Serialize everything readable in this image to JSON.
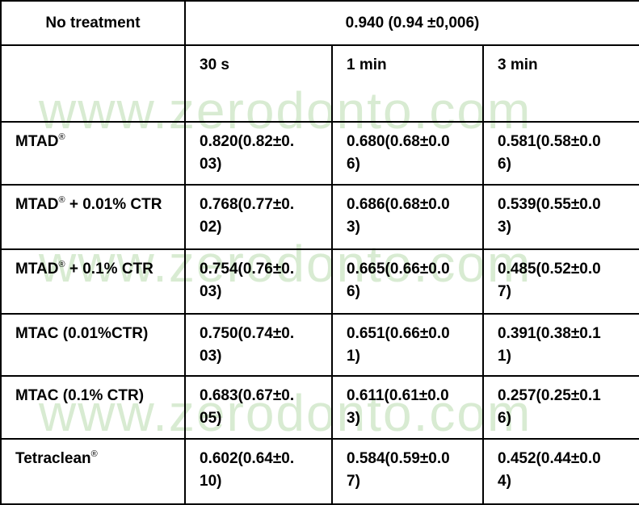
{
  "watermark": "www.zerodonto.com",
  "table": {
    "header": [
      "No treatment",
      "0.940 (0.94 ±0,006)"
    ],
    "columns": [
      "30 s",
      "1 min",
      "3 min"
    ],
    "rows": [
      {
        "label": {
          "text": "MTAD",
          "sup": "®"
        },
        "cells": [
          "0.820(0.82±0.03)",
          "0.680(0.68±0.06)",
          "0.581(0.58±0.06)"
        ]
      },
      {
        "label": {
          "text": "MTAD",
          "sup": "®",
          "after": " + 0.01% CTR"
        },
        "cells": [
          "0.768(0.77±0.02)",
          "0.686(0.68±0.03)",
          "0.539(0.55±0.03)"
        ]
      },
      {
        "label": {
          "text": "MTAD",
          "sup": "®",
          "after": " + 0.1% CTR"
        },
        "cells": [
          "0.754(0.76±0.03)",
          "0.665(0.66±0.06)",
          "0.485(0.52±0.07)"
        ]
      },
      {
        "label": {
          "text": "MTAC (0.01%CTR)"
        },
        "cells": [
          "0.750(0.74±0.03)",
          "0.651(0.66±0.01)",
          "0.391(0.38±0.11)"
        ]
      },
      {
        "label": {
          "text": "MTAC (0.1% CTR)"
        },
        "cells": [
          "0.683(0.67±0.05)",
          "0.611(0.61±0.03)",
          "0.257(0.25±0.16)"
        ]
      },
      {
        "label": {
          "text": "Tetraclean",
          "sup": "®"
        },
        "cells": [
          "0.602(0.64±0.10)",
          "0.584(0.59±0.07)",
          "0.452(0.44±0.04)"
        ]
      }
    ]
  }
}
